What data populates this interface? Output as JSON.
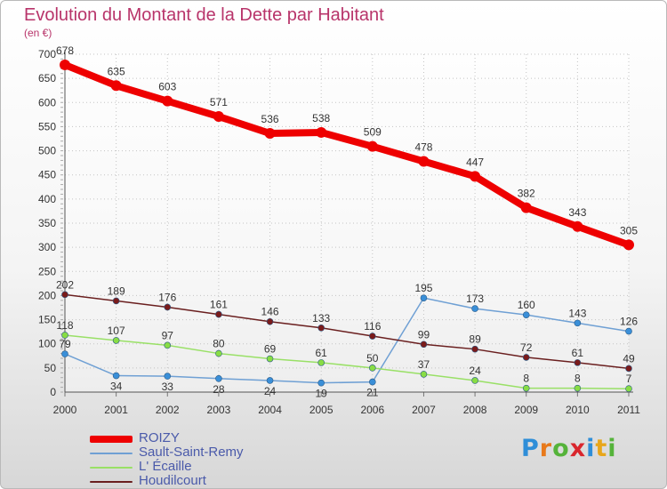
{
  "title": "Evolution du Montant de la Dette par Habitant",
  "subtitle": "(en €)",
  "logo": {
    "text": "Proxiti",
    "letters": [
      {
        "ch": "P",
        "color": "#2f8ed8"
      },
      {
        "ch": "r",
        "color": "#e8791b"
      },
      {
        "ch": "o",
        "color": "#55b33a"
      },
      {
        "ch": "x",
        "color": "#d9262d"
      },
      {
        "ch": "i",
        "color": "#2f8ed8"
      },
      {
        "ch": "t",
        "color": "#e8a61b"
      },
      {
        "ch": "i",
        "color": "#55b33a"
      }
    ]
  },
  "chart_data": {
    "type": "line",
    "title": "Evolution du Montant de la Dette par Habitant",
    "subtitle": "(en €)",
    "xlabel": "",
    "ylabel": "",
    "x": [
      "2000",
      "2001",
      "2002",
      "2003",
      "2004",
      "2005",
      "2006",
      "2007",
      "2008",
      "2009",
      "2010",
      "2011"
    ],
    "ylim": [
      0,
      700
    ],
    "yticks": [
      0,
      50,
      100,
      150,
      200,
      250,
      300,
      350,
      400,
      450,
      500,
      550,
      600,
      650,
      700
    ],
    "grid": true,
    "legend_position": "bottom-left",
    "series": [
      {
        "name": "ROIZY",
        "color": "#ee0000",
        "marker": "#ee0000",
        "label_color": "#333333",
        "width": 8,
        "point_r": 6,
        "values": [
          678,
          635,
          603,
          571,
          536,
          538,
          509,
          478,
          447,
          382,
          343,
          305
        ]
      },
      {
        "name": "Sault-Saint-Remy",
        "color": "#6fa0d4",
        "marker": "#3a8fd8",
        "label_color": "#333333",
        "width": 1.5,
        "point_r": 3.5,
        "values": [
          79,
          34,
          33,
          28,
          24,
          19,
          21,
          195,
          173,
          160,
          143,
          126
        ]
      },
      {
        "name": "L' Écaille",
        "color": "#99e066",
        "marker": "#88dd44",
        "label_color": "#333333",
        "width": 1.5,
        "point_r": 3.5,
        "values": [
          118,
          107,
          97,
          80,
          69,
          61,
          50,
          37,
          24,
          8,
          8,
          7
        ]
      },
      {
        "name": "Houdilcourt",
        "color": "#6a1f1f",
        "marker": "#7a1b1b",
        "label_color": "#333333",
        "width": 1.5,
        "point_r": 3.5,
        "values": [
          202,
          189,
          176,
          161,
          146,
          133,
          116,
          99,
          89,
          72,
          61,
          49
        ]
      }
    ]
  }
}
